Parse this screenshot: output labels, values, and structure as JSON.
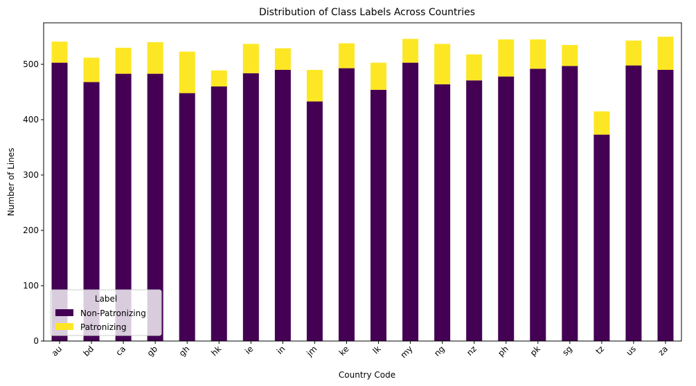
{
  "chart_data": {
    "type": "bar",
    "stacked": true,
    "title": "Distribution of Class Labels Across Countries",
    "xlabel": "Country Code",
    "ylabel": "Number of Lines",
    "ylim": [
      0,
      575
    ],
    "yticks": [
      0,
      100,
      200,
      300,
      400,
      500
    ],
    "categories": [
      "au",
      "bd",
      "ca",
      "gb",
      "gh",
      "hk",
      "ie",
      "in",
      "jm",
      "ke",
      "lk",
      "my",
      "ng",
      "nz",
      "ph",
      "pk",
      "sg",
      "tz",
      "us",
      "za"
    ],
    "series": [
      {
        "name": "Non-Patronizing",
        "color": "#440154",
        "values": [
          503,
          468,
          483,
          483,
          448,
          460,
          484,
          490,
          433,
          493,
          454,
          503,
          464,
          471,
          478,
          492,
          497,
          373,
          498,
          490
        ]
      },
      {
        "name": "Patronizing",
        "color": "#fde725",
        "values": [
          38,
          44,
          47,
          57,
          75,
          29,
          53,
          39,
          57,
          45,
          49,
          43,
          73,
          47,
          67,
          53,
          38,
          42,
          45,
          60
        ]
      }
    ],
    "legend": {
      "title": "Label",
      "placement": "lower-left"
    },
    "grid": false
  }
}
